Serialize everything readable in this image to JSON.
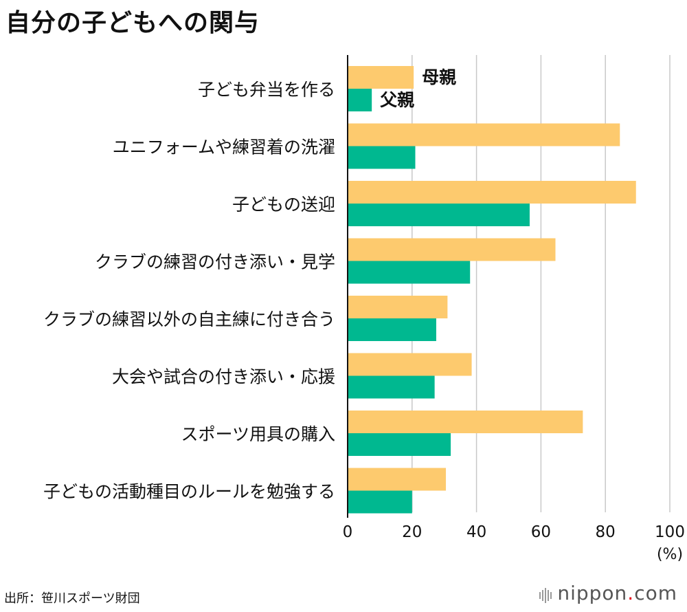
{
  "chart_data": {
    "type": "bar",
    "orientation": "horizontal",
    "title": "自分の子どもへの関与",
    "categories": [
      "子ども弁当を作る",
      "ユニフォームや練習着の洗濯",
      "子どもの送迎",
      "クラブの練習の付き添い・見学",
      "クラブの練習以外の自主練に付き合う",
      "大会や試合の付き添い・応援",
      "スポーツ用具の購入",
      "子どもの活動種目のルールを勉強する"
    ],
    "series": [
      {
        "name": "母親",
        "color": "#fdca6e",
        "values": [
          20.5,
          84.5,
          89.5,
          64.5,
          31,
          38.5,
          73,
          30.5
        ]
      },
      {
        "name": "父親",
        "color": "#00b890",
        "values": [
          7.5,
          21,
          56.5,
          38,
          27.5,
          27,
          32,
          20
        ]
      }
    ],
    "xticks": [
      "0",
      "20",
      "40",
      "60",
      "80",
      "100"
    ],
    "xlim": [
      0,
      100
    ],
    "xunit": "(%)",
    "grid": true
  },
  "source": "出所：笹川スポーツ財団",
  "brand": {
    "name": "nippon",
    "dot": ".",
    "tld": "com"
  }
}
